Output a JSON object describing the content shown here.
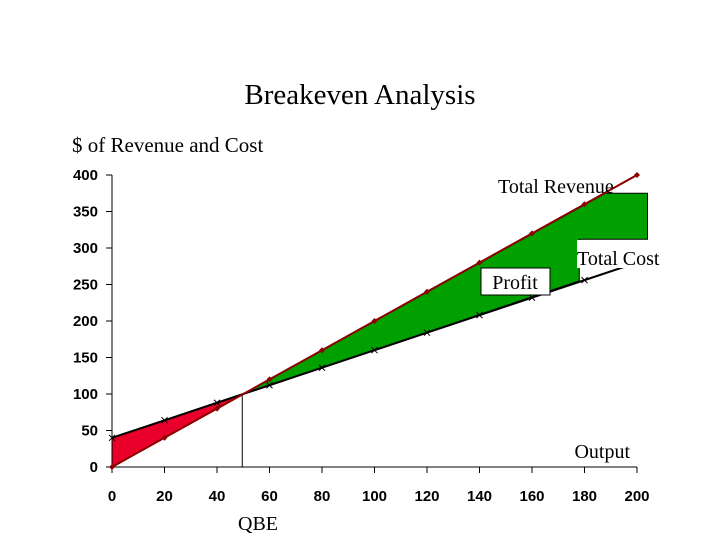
{
  "chart_data": {
    "type": "line",
    "title": "Breakeven Analysis",
    "ylabel": "$ of Revenue and Cost",
    "xlabel": "Output",
    "xlim": [
      0,
      200
    ],
    "ylim": [
      0,
      400
    ],
    "x_ticks": [
      0,
      20,
      40,
      60,
      80,
      100,
      120,
      140,
      160,
      180,
      200
    ],
    "y_ticks": [
      0,
      50,
      100,
      150,
      200,
      250,
      300,
      350,
      400
    ],
    "grid": false,
    "series": [
      {
        "name": "Total Revenue",
        "color": "#8b0000",
        "marker": "diamond",
        "x": [
          0,
          20,
          40,
          60,
          80,
          100,
          120,
          140,
          160,
          180,
          200
        ],
        "values": [
          0,
          40,
          80,
          120,
          160,
          200,
          240,
          280,
          320,
          360,
          400
        ]
      },
      {
        "name": "Total Cost",
        "color": "#000000",
        "marker": "x",
        "x": [
          0,
          20,
          40,
          60,
          80,
          100,
          120,
          140,
          160,
          180,
          200
        ],
        "values": [
          40,
          64,
          88,
          112,
          136,
          160,
          184,
          208,
          232,
          256,
          280
        ]
      }
    ],
    "breakeven": {
      "x": 50,
      "y": 100,
      "label": "QBE"
    },
    "regions": [
      {
        "name": "loss",
        "color": "#e8002a"
      },
      {
        "name": "Profit",
        "color": "#00a000"
      }
    ],
    "annotations": {
      "total_revenue": "Total Revenue",
      "total_cost": "Total Cost",
      "profit": "Profit",
      "qbe": "QBE"
    }
  }
}
